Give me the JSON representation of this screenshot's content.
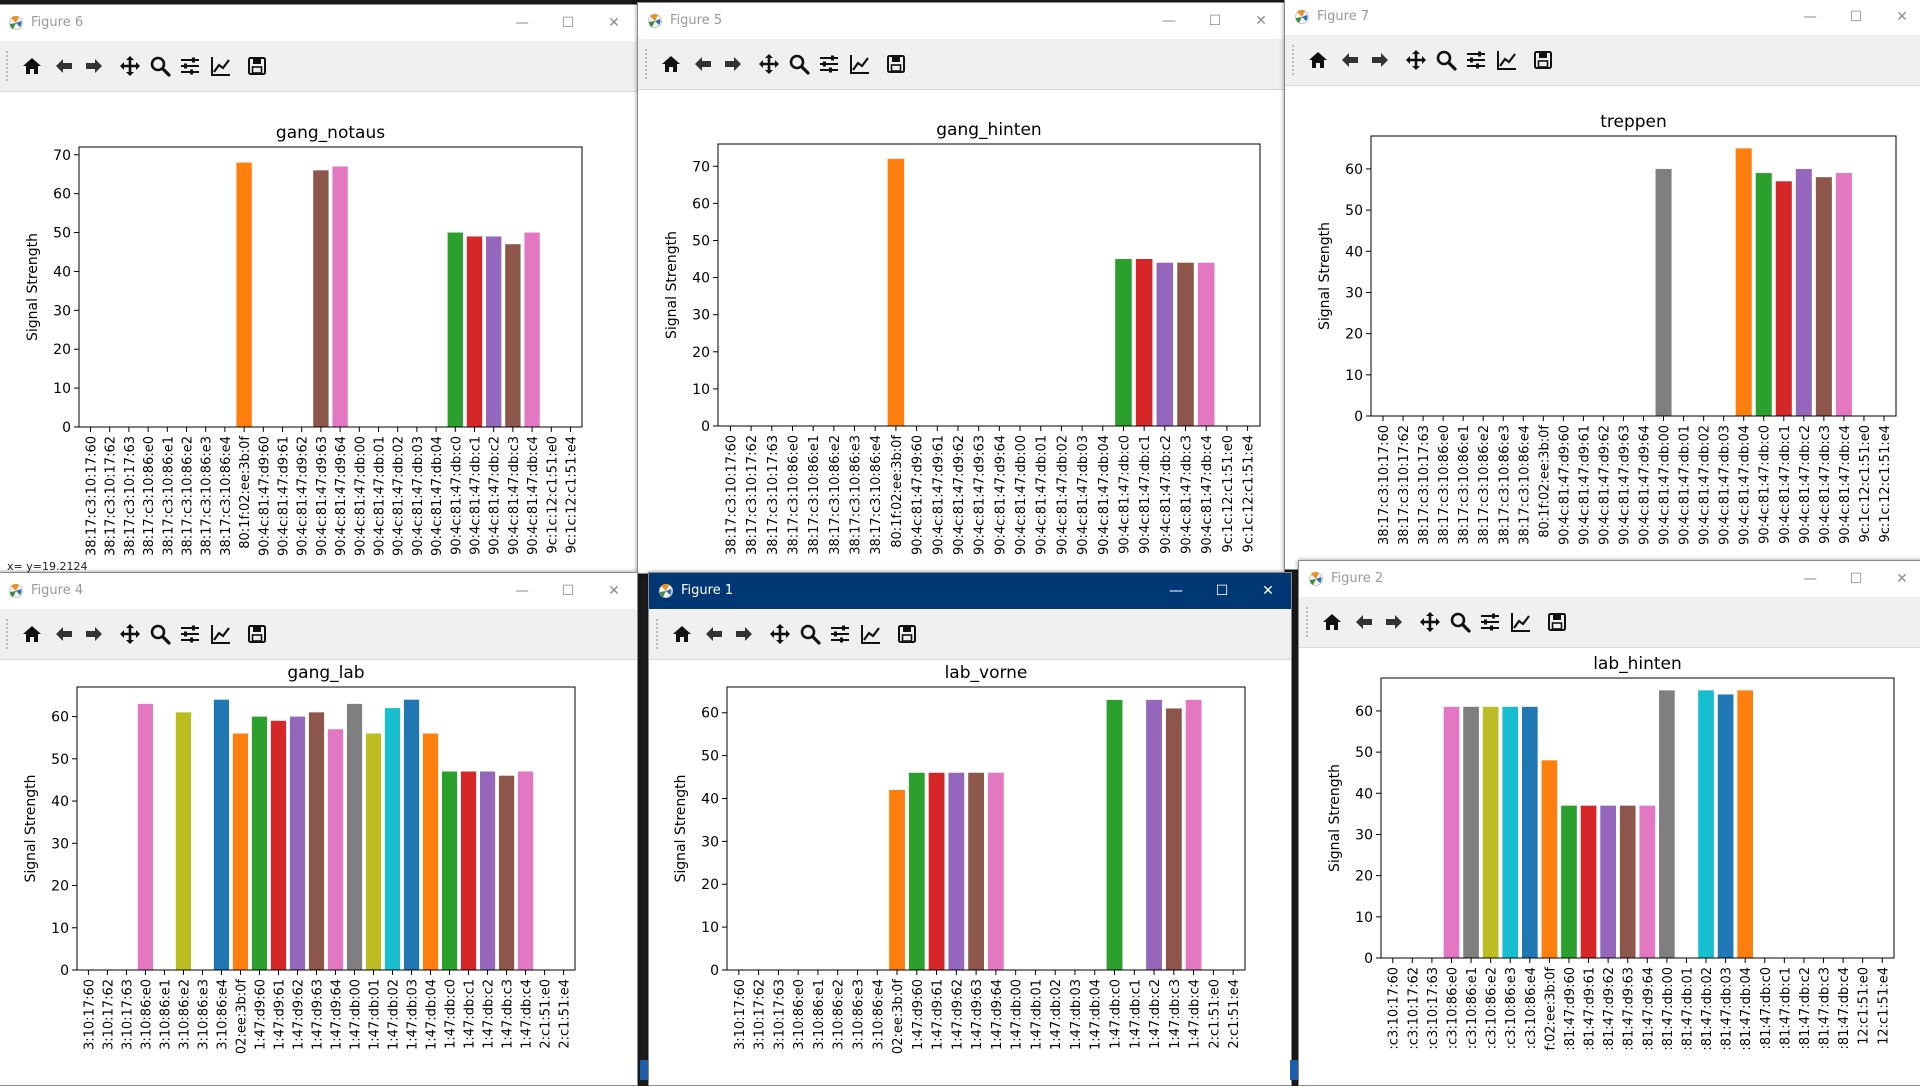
{
  "palette": [
    "#d62728",
    "#9467bd",
    "#8c564b",
    "#e377c2",
    "#7f7f7f",
    "#bcbd22",
    "#17becf",
    "#1f77b4",
    "#ff7f0e",
    "#2ca02c"
  ],
  "toolbar": {
    "icons": [
      "home-icon",
      "back-arrow-icon",
      "forward-arrow-icon",
      "pan-move-icon",
      "zoom-magnifier-icon",
      "configure-subplots-icon",
      "edit-axis-icon",
      "save-disk-icon"
    ]
  },
  "windows": {
    "fig6": {
      "title": "Figure 6",
      "status": "x= y=19.2124",
      "chart_data": {
        "type": "bar",
        "title": "gang_notaus",
        "ylabel": "Signal Strength",
        "ylim": [
          0,
          72
        ],
        "yticks": [
          0,
          10,
          20,
          30,
          40,
          50,
          60,
          70
        ],
        "categories": [
          "38:17:c3:10:17:60",
          "38:17:c3:10:17:62",
          "38:17:c3:10:17:63",
          "38:17:c3:10:86:e0",
          "38:17:c3:10:86:e1",
          "38:17:c3:10:86:e2",
          "38:17:c3:10:86:e3",
          "38:17:c3:10:86:e4",
          "80:1f:02:ee:3b:0f",
          "90:4c:81:47:d9:60",
          "90:4c:81:47:d9:61",
          "90:4c:81:47:d9:62",
          "90:4c:81:47:d9:63",
          "90:4c:81:47:d9:64",
          "90:4c:81:47:db:00",
          "90:4c:81:47:db:01",
          "90:4c:81:47:db:02",
          "90:4c:81:47:db:03",
          "90:4c:81:47:db:04",
          "90:4c:81:47:db:c0",
          "90:4c:81:47:db:c1",
          "90:4c:81:47:db:c2",
          "90:4c:81:47:db:c3",
          "90:4c:81:47:db:c4",
          "9c:1c:12:c1:51:e0",
          "9c:1c:12:c1:51:e4"
        ],
        "values": [
          0,
          0,
          0,
          0,
          0,
          0,
          0,
          0,
          68,
          0,
          0,
          0,
          66,
          67,
          0,
          0,
          0,
          0,
          0,
          50,
          49,
          49,
          47,
          50,
          0,
          0
        ]
      }
    },
    "fig5": {
      "title": "Figure 5",
      "chart_data": {
        "type": "bar",
        "title": "gang_hinten",
        "ylabel": "Signal Strength",
        "ylim": [
          0,
          76
        ],
        "yticks": [
          0,
          10,
          20,
          30,
          40,
          50,
          60,
          70
        ],
        "categories": [
          "38:17:c3:10:17:60",
          "38:17:c3:10:17:62",
          "38:17:c3:10:17:63",
          "38:17:c3:10:86:e0",
          "38:17:c3:10:86:e1",
          "38:17:c3:10:86:e2",
          "38:17:c3:10:86:e3",
          "38:17:c3:10:86:e4",
          "80:1f:02:ee:3b:0f",
          "90:4c:81:47:d9:60",
          "90:4c:81:47:d9:61",
          "90:4c:81:47:d9:62",
          "90:4c:81:47:d9:63",
          "90:4c:81:47:d9:64",
          "90:4c:81:47:db:00",
          "90:4c:81:47:db:01",
          "90:4c:81:47:db:02",
          "90:4c:81:47:db:03",
          "90:4c:81:47:db:04",
          "90:4c:81:47:db:c0",
          "90:4c:81:47:db:c1",
          "90:4c:81:47:db:c2",
          "90:4c:81:47:db:c3",
          "90:4c:81:47:db:c4",
          "9c:1c:12:c1:51:e0",
          "9c:1c:12:c1:51:e4"
        ],
        "values": [
          0,
          0,
          0,
          0,
          0,
          0,
          0,
          0,
          72,
          0,
          0,
          0,
          0,
          0,
          0,
          0,
          0,
          0,
          0,
          45,
          45,
          44,
          44,
          44,
          0,
          0
        ]
      }
    },
    "fig7": {
      "title": "Figure 7",
      "chart_data": {
        "type": "bar",
        "title": "treppen",
        "ylabel": "Signal Strength",
        "ylim": [
          0,
          68
        ],
        "yticks": [
          0,
          10,
          20,
          30,
          40,
          50,
          60
        ],
        "categories": [
          "38:17:c3:10:17:60",
          "38:17:c3:10:17:62",
          "38:17:c3:10:17:63",
          "38:17:c3:10:86:e0",
          "38:17:c3:10:86:e1",
          "38:17:c3:10:86:e2",
          "38:17:c3:10:86:e3",
          "38:17:c3:10:86:e4",
          "80:1f:02:ee:3b:0f",
          "90:4c:81:47:d9:60",
          "90:4c:81:47:d9:61",
          "90:4c:81:47:d9:62",
          "90:4c:81:47:d9:63",
          "90:4c:81:47:d9:64",
          "90:4c:81:47:db:00",
          "90:4c:81:47:db:01",
          "90:4c:81:47:db:02",
          "90:4c:81:47:db:03",
          "90:4c:81:47:db:04",
          "90:4c:81:47:db:c0",
          "90:4c:81:47:db:c1",
          "90:4c:81:47:db:c2",
          "90:4c:81:47:db:c3",
          "90:4c:81:47:db:c4",
          "9c:1c:12:c1:51:e0",
          "9c:1c:12:c1:51:e4"
        ],
        "values": [
          0,
          0,
          0,
          0,
          0,
          0,
          0,
          0,
          0,
          0,
          0,
          0,
          0,
          0,
          60,
          0,
          0,
          0,
          65,
          59,
          57,
          60,
          58,
          59,
          0,
          0
        ]
      }
    },
    "fig4": {
      "title": "Figure 4",
      "chart_data": {
        "type": "bar",
        "title": "gang_lab",
        "ylabel": "Signal Strength",
        "ylim": [
          0,
          67
        ],
        "yticks": [
          0,
          10,
          20,
          30,
          40,
          50,
          60
        ],
        "categories": [
          "3:10:17:60",
          "3:10:17:62",
          "3:10:17:63",
          "3:10:86:e0",
          "3:10:86:e1",
          "3:10:86:e2",
          "3:10:86:e3",
          "3:10:86:e4",
          "02:ee:3b:0f",
          "1:47:d9:60",
          "1:47:d9:61",
          "1:47:d9:62",
          "1:47:d9:63",
          "1:47:d9:64",
          "1:47:db:00",
          "1:47:db:01",
          "1:47:db:02",
          "1:47:db:03",
          "1:47:db:04",
          "1:47:db:c0",
          "1:47:db:c1",
          "1:47:db:c2",
          "1:47:db:c3",
          "1:47:db:c4",
          "2:c1:51:e0",
          "2:c1:51:e4"
        ],
        "values": [
          0,
          0,
          0,
          63,
          0,
          61,
          0,
          64,
          56,
          60,
          59,
          60,
          61,
          57,
          63,
          56,
          62,
          64,
          56,
          47,
          47,
          47,
          46,
          47,
          0,
          0
        ]
      }
    },
    "fig1": {
      "title": "Figure 1",
      "chart_data": {
        "type": "bar",
        "title": "lab_vorne",
        "ylabel": "Signal Strength",
        "ylim": [
          0,
          66
        ],
        "yticks": [
          0,
          10,
          20,
          30,
          40,
          50,
          60
        ],
        "categories": [
          "3:10:17:60",
          "3:10:17:62",
          "3:10:17:63",
          "3:10:86:e0",
          "3:10:86:e1",
          "3:10:86:e2",
          "3:10:86:e3",
          "3:10:86:e4",
          "02:ee:3b:0f",
          "1:47:d9:60",
          "1:47:d9:61",
          "1:47:d9:62",
          "1:47:d9:63",
          "1:47:d9:64",
          "1:47:db:00",
          "1:47:db:01",
          "1:47:db:02",
          "1:47:db:03",
          "1:47:db:04",
          "1:47:db:c0",
          "1:47:db:c1",
          "1:47:db:c2",
          "1:47:db:c3",
          "1:47:db:c4",
          "2:c1:51:e0",
          "2:c1:51:e4"
        ],
        "values": [
          0,
          0,
          0,
          0,
          0,
          0,
          0,
          0,
          42,
          46,
          46,
          46,
          46,
          46,
          0,
          0,
          0,
          0,
          0,
          63,
          0,
          63,
          61,
          63,
          0,
          0
        ]
      }
    },
    "fig2": {
      "title": "Figure 2",
      "chart_data": {
        "type": "bar",
        "title": "lab_hinten",
        "ylabel": "Signal Strength",
        "ylim": [
          0,
          68
        ],
        "yticks": [
          0,
          10,
          20,
          30,
          40,
          50,
          60
        ],
        "categories": [
          ":c3:10:17:60",
          ":c3:10:17:62",
          ":c3:10:17:63",
          ":c3:10:86:e0",
          ":c3:10:86:e1",
          ":c3:10:86:e2",
          ":c3:10:86:e3",
          ":c3:10:86:e4",
          "f:02:ee:3b:0f",
          ":81:47:d9:60",
          ":81:47:d9:61",
          ":81:47:d9:62",
          ":81:47:d9:63",
          ":81:47:d9:64",
          ":81:47:db:00",
          ":81:47:db:01",
          ":81:47:db:02",
          ":81:47:db:03",
          ":81:47:db:04",
          ":81:47:db:c0",
          ":81:47:db:c1",
          ":81:47:db:c2",
          ":81:47:db:c3",
          ":81:47:db:c4",
          "12:c1:51:e0",
          "12:c1:51:e4"
        ],
        "values": [
          0,
          0,
          0,
          61,
          61,
          61,
          61,
          61,
          48,
          37,
          37,
          37,
          37,
          37,
          65,
          0,
          65,
          64,
          65,
          0,
          0,
          0,
          0,
          0,
          0,
          0
        ]
      }
    }
  }
}
